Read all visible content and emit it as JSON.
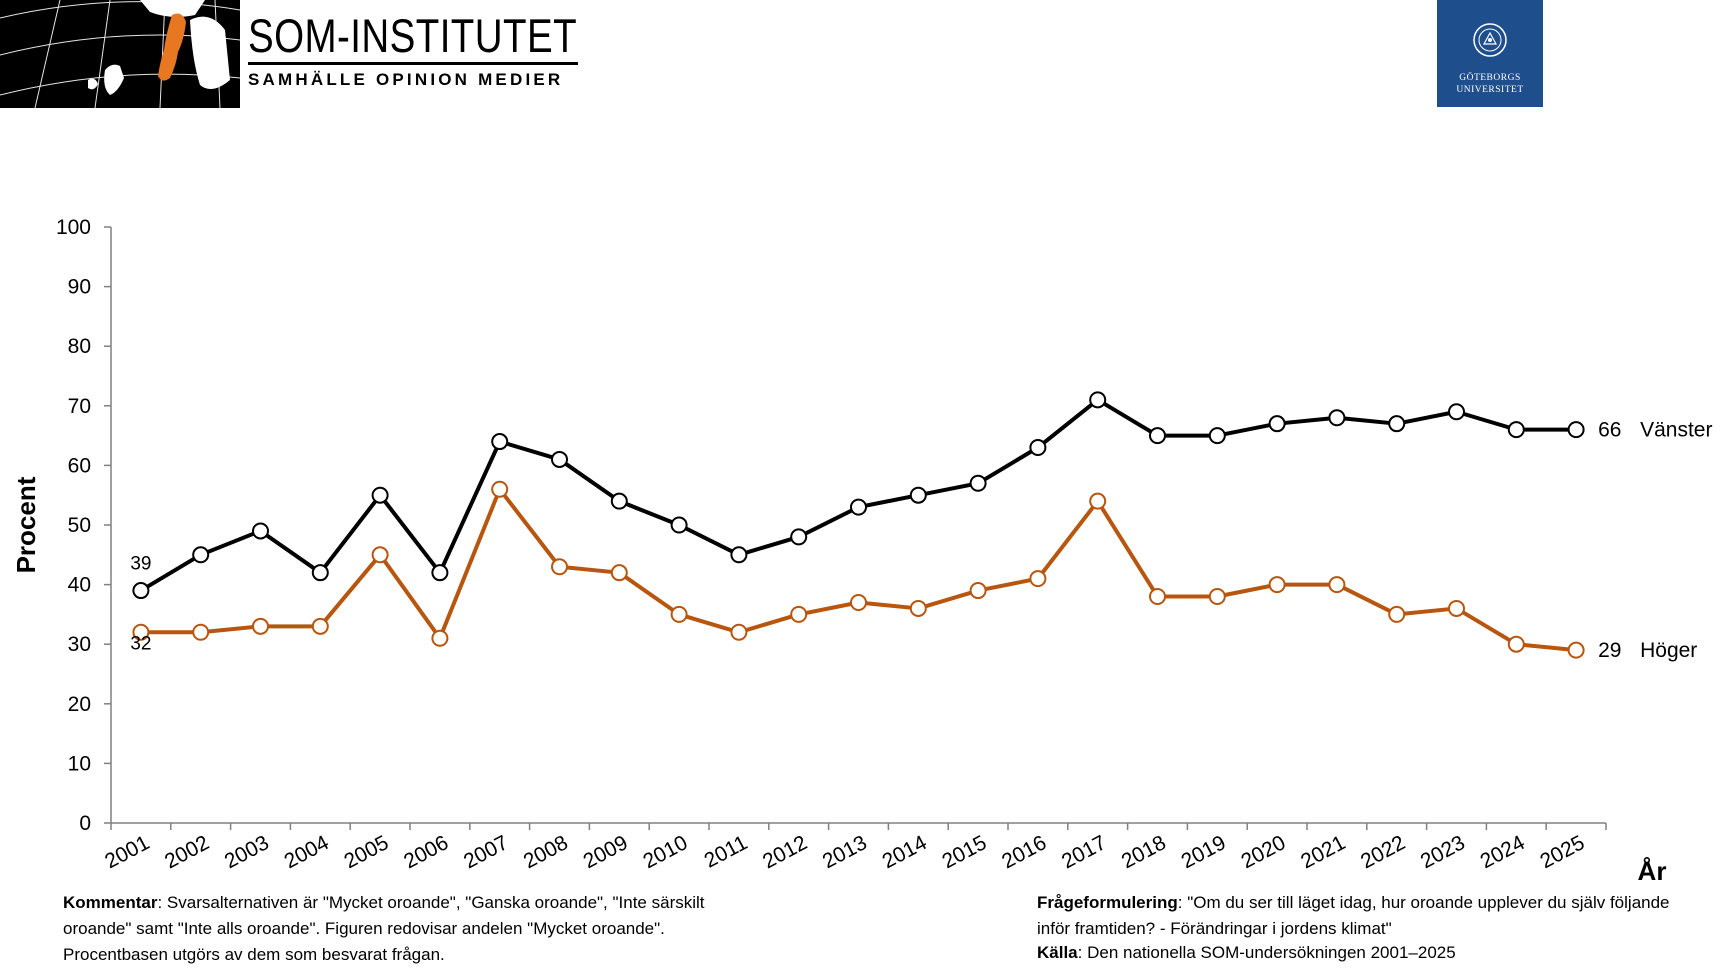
{
  "header": {
    "brand_title": "SOM-INSTITUTET",
    "brand_tagline": "SAMHÄLLE OPINION MEDIER",
    "university_line1": "GÖTEBORGS",
    "university_line2": "UNIVERSITET"
  },
  "colors": {
    "vanster": "#000000",
    "hoger": "#b8560f",
    "university_blue": "#1f4e8c",
    "sweden_orange": "#e87722"
  },
  "chart_data": {
    "type": "line",
    "title": "",
    "xlabel": "År",
    "ylabel": "Procent",
    "ylim": [
      0,
      100
    ],
    "yticks": [
      "0",
      "10",
      "20",
      "30",
      "40",
      "50",
      "60",
      "70",
      "80",
      "90",
      "100"
    ],
    "categories": [
      "2001",
      "2002",
      "2003",
      "2004",
      "2005",
      "2006",
      "2007",
      "2008",
      "2009",
      "2010",
      "2011",
      "2012",
      "2013",
      "2014",
      "2015",
      "2016",
      "2017",
      "2018",
      "2019",
      "2020",
      "2021",
      "2022",
      "2023",
      "2024",
      "2025"
    ],
    "grid": false,
    "series": [
      {
        "name": "Vänster",
        "values": [
          39,
          45,
          49,
          42,
          55,
          42,
          64,
          61,
          54,
          50,
          45,
          48,
          53,
          55,
          57,
          63,
          71,
          65,
          65,
          67,
          68,
          67,
          69,
          66,
          66
        ],
        "first_label": "39",
        "last_label": "66"
      },
      {
        "name": "Höger",
        "values": [
          32,
          32,
          33,
          33,
          45,
          31,
          56,
          43,
          42,
          35,
          32,
          35,
          37,
          36,
          39,
          41,
          54,
          38,
          38,
          40,
          40,
          35,
          36,
          30,
          29
        ],
        "first_label": "32",
        "last_label": "29"
      }
    ]
  },
  "notes": {
    "comment_label": "Kommentar",
    "comment_text": ": Svarsalternativen är \"Mycket oroande\", \"Ganska oroande\", \"Inte särskilt oroande\" samt \"Inte alls oroande\". Figuren redovisar andelen \"Mycket oroande\". Procentbasen utgörs av dem som besvarat frågan.",
    "question_label": "Frågeformulering",
    "question_text": ": \"Om du ser till läget idag, hur oroande upplever du själv följande inför framtiden? - Förändringar i jordens klimat\"",
    "source_label": "Källa",
    "source_text": ": Den nationella SOM-undersökningen 2001–2025"
  }
}
